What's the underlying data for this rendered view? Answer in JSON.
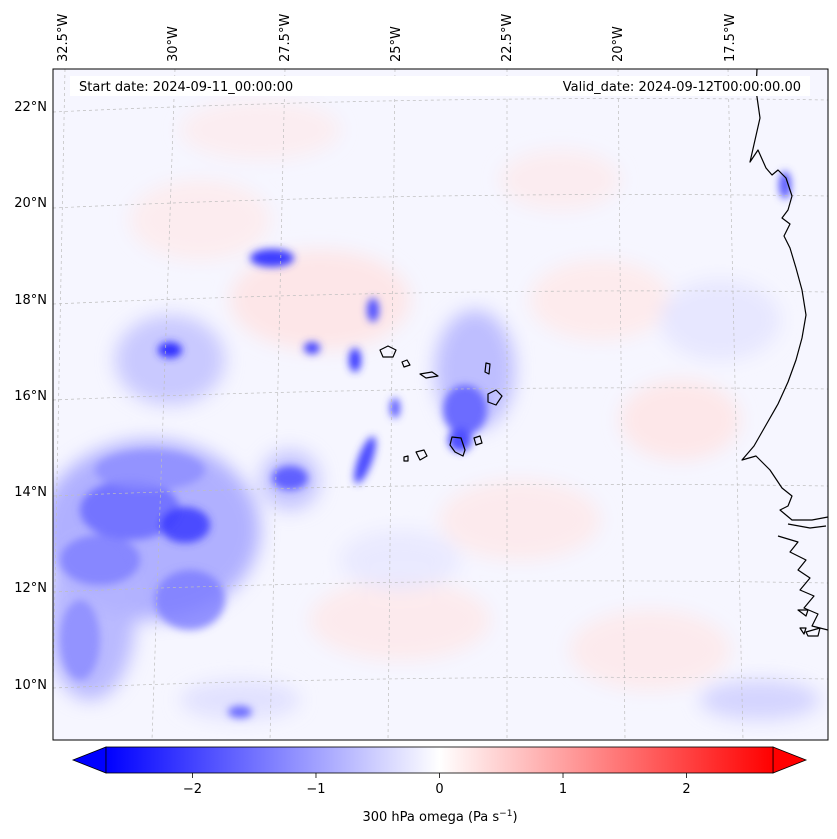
{
  "header": {
    "start_date": "Start date: 2024-09-11_00:00:00",
    "valid_date": "Valid_date: 2024-09-12T00:00:00.00"
  },
  "longitude_ticks": [
    "32.5°W",
    "30°W",
    "27.5°W",
    "25°W",
    "22.5°W",
    "20°W",
    "17.5°W"
  ],
  "latitude_ticks": [
    "22°N",
    "20°N",
    "18°N",
    "16°N",
    "14°N",
    "12°N",
    "10°N"
  ],
  "colorbar": {
    "label": "300 hPa omega (Pa s",
    "label_sup": "−1",
    "label_tail": ")",
    "ticks": [
      {
        "value": -2,
        "text": "−2"
      },
      {
        "value": -1,
        "text": "−1"
      },
      {
        "value": 0,
        "text": "0"
      },
      {
        "value": 1,
        "text": "1"
      },
      {
        "value": 2,
        "text": "2"
      }
    ],
    "min": -2.7,
    "max": 2.7,
    "extend": "both",
    "colormap": "bwr",
    "colors": {
      "negative": "#0000ff",
      "zero": "#ffffff",
      "positive": "#ff0000"
    }
  },
  "map": {
    "lon_range": [
      -33.0,
      -14.5
    ],
    "lat_range": [
      8.8,
      22.8
    ],
    "gridlines": true,
    "coastline_color": "#000000"
  }
}
